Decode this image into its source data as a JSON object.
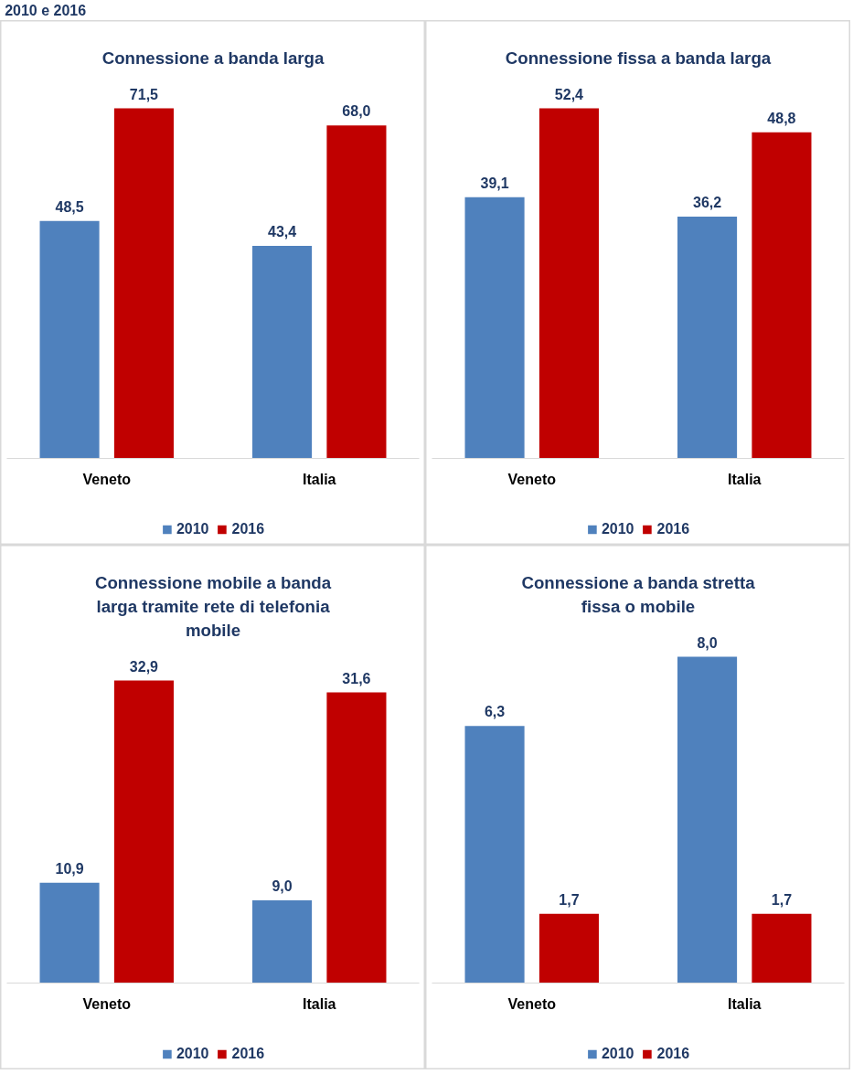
{
  "chart_data": [
    {
      "type": "bar",
      "title": "Connessione a banda larga",
      "annotations": [
        "2010 e 2016"
      ],
      "categories": [
        "Veneto",
        "Italia"
      ],
      "series": [
        {
          "name": "2010",
          "color": "#4f81bd",
          "values": [
            48.5,
            43.4
          ],
          "value_labels": [
            "48,5",
            "43,4"
          ]
        },
        {
          "name": "2016",
          "color": "#c00000",
          "values": [
            71.5,
            68.0
          ],
          "value_labels": [
            "71,5",
            "68,0"
          ]
        }
      ],
      "legend": "bottom",
      "grid": false,
      "tick_labels": "x"
    },
    {
      "type": "bar",
      "title": "Connessione fissa a banda larga",
      "categories": [
        "Veneto",
        "Italia"
      ],
      "series": [
        {
          "name": "2010",
          "color": "#4f81bd",
          "values": [
            39.1,
            36.2
          ],
          "value_labels": [
            "39,1",
            "36,2"
          ]
        },
        {
          "name": "2016",
          "color": "#c00000",
          "values": [
            52.4,
            48.8
          ],
          "value_labels": [
            "52,4",
            "48,8"
          ]
        }
      ],
      "legend": "bottom",
      "grid": false,
      "tick_labels": "x"
    },
    {
      "type": "bar",
      "title": "Connessione mobile a banda larga tramite rete di telefonia mobile",
      "categories": [
        "Veneto",
        "Italia"
      ],
      "series": [
        {
          "name": "2010",
          "color": "#4f81bd",
          "values": [
            10.9,
            9.0
          ],
          "value_labels": [
            "10,9",
            "9,0"
          ]
        },
        {
          "name": "2016",
          "color": "#c00000",
          "values": [
            32.9,
            31.6
          ],
          "value_labels": [
            "32,9",
            "31,6"
          ]
        }
      ],
      "legend": "bottom",
      "grid": false,
      "tick_labels": "x"
    },
    {
      "type": "bar",
      "title": "Connessione a banda stretta fissa o mobile",
      "categories": [
        "Veneto",
        "Italia"
      ],
      "series": [
        {
          "name": "2010",
          "color": "#4f81bd",
          "values": [
            6.3,
            8.0
          ],
          "value_labels": [
            "6,3",
            "8,0"
          ]
        },
        {
          "name": "2016",
          "color": "#c00000",
          "values": [
            1.7,
            1.7
          ],
          "value_labels": [
            "1,7",
            "1,7"
          ]
        }
      ],
      "legend": "bottom",
      "grid": false,
      "tick_labels": "x"
    }
  ]
}
